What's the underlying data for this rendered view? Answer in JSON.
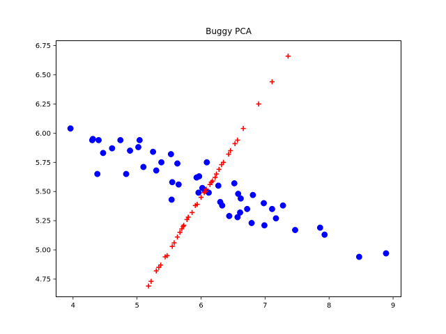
{
  "chart_data": {
    "type": "scatter",
    "title": "Buggy PCA",
    "xlabel": "",
    "ylabel": "",
    "xlim": [
      3.73,
      9.13
    ],
    "ylim": [
      4.595,
      6.795
    ],
    "x_ticks": [
      4,
      5,
      6,
      7,
      8,
      9
    ],
    "y_ticks": [
      4.75,
      5.0,
      5.25,
      5.5,
      5.75,
      6.0,
      6.25,
      6.5,
      6.75
    ],
    "x_tick_labels": [
      "4",
      "5",
      "6",
      "7",
      "8",
      "9"
    ],
    "y_tick_labels": [
      "4.75",
      "5.00",
      "5.25",
      "5.50",
      "5.75",
      "6.00",
      "6.25",
      "6.50",
      "6.75"
    ],
    "grid": false,
    "legend": "none",
    "colors": {
      "data": "#0000ff",
      "projected": "#ff0000"
    },
    "series": [
      {
        "marker": "circle",
        "color": "#0000ff",
        "points": [
          [
            3.96,
            6.04
          ],
          [
            4.3,
            5.94
          ],
          [
            4.31,
            5.95
          ],
          [
            4.4,
            5.94
          ],
          [
            4.38,
            5.65
          ],
          [
            4.47,
            5.83
          ],
          [
            4.61,
            5.87
          ],
          [
            4.74,
            5.94
          ],
          [
            4.83,
            5.65
          ],
          [
            4.89,
            5.85
          ],
          [
            5.02,
            5.88
          ],
          [
            5.04,
            5.94
          ],
          [
            5.1,
            5.71
          ],
          [
            5.25,
            5.84
          ],
          [
            5.3,
            5.68
          ],
          [
            5.38,
            5.75
          ],
          [
            5.53,
            5.82
          ],
          [
            5.55,
            5.58
          ],
          [
            5.54,
            5.43
          ],
          [
            5.63,
            5.74
          ],
          [
            5.65,
            5.56
          ],
          [
            5.93,
            5.62
          ],
          [
            5.97,
            5.63
          ],
          [
            5.96,
            5.49
          ],
          [
            6.02,
            5.53
          ],
          [
            6.06,
            5.51
          ],
          [
            6.09,
            5.75
          ],
          [
            6.12,
            5.49
          ],
          [
            6.27,
            5.55
          ],
          [
            6.3,
            5.41
          ],
          [
            6.33,
            5.38
          ],
          [
            6.44,
            5.29
          ],
          [
            6.52,
            5.57
          ],
          [
            6.57,
            5.28
          ],
          [
            6.58,
            5.48
          ],
          [
            6.61,
            5.32
          ],
          [
            6.62,
            5.44
          ],
          [
            6.72,
            5.35
          ],
          [
            6.79,
            5.23
          ],
          [
            6.81,
            5.47
          ],
          [
            6.98,
            5.4
          ],
          [
            6.99,
            5.21
          ],
          [
            7.11,
            5.35
          ],
          [
            7.17,
            5.27
          ],
          [
            7.28,
            5.38
          ],
          [
            7.47,
            5.17
          ],
          [
            7.86,
            5.19
          ],
          [
            7.93,
            5.13
          ],
          [
            8.47,
            4.94
          ],
          [
            8.89,
            4.97
          ]
        ]
      },
      {
        "marker": "plus",
        "color": "#ff0000",
        "points": [
          [
            5.18,
            4.69
          ],
          [
            5.22,
            4.73
          ],
          [
            5.3,
            4.82
          ],
          [
            5.34,
            4.85
          ],
          [
            5.37,
            4.87
          ],
          [
            5.44,
            4.94
          ],
          [
            5.47,
            4.95
          ],
          [
            5.55,
            5.03
          ],
          [
            5.58,
            5.06
          ],
          [
            5.63,
            5.11
          ],
          [
            5.67,
            5.15
          ],
          [
            5.7,
            5.18
          ],
          [
            5.72,
            5.2
          ],
          [
            5.73,
            5.21
          ],
          [
            5.78,
            5.26
          ],
          [
            5.8,
            5.28
          ],
          [
            5.86,
            5.32
          ],
          [
            5.91,
            5.38
          ],
          [
            5.94,
            5.39
          ],
          [
            6.0,
            5.45
          ],
          [
            6.05,
            5.49
          ],
          [
            6.07,
            5.5
          ],
          [
            6.08,
            5.52
          ],
          [
            6.14,
            5.56
          ],
          [
            6.16,
            5.58
          ],
          [
            6.18,
            5.59
          ],
          [
            6.22,
            5.62
          ],
          [
            6.24,
            5.65
          ],
          [
            6.28,
            5.69
          ],
          [
            6.32,
            5.73
          ],
          [
            6.35,
            5.75
          ],
          [
            6.43,
            5.82
          ],
          [
            6.46,
            5.85
          ],
          [
            6.53,
            5.91
          ],
          [
            6.57,
            5.94
          ],
          [
            6.66,
            6.04
          ],
          [
            6.9,
            6.25
          ],
          [
            7.11,
            6.44
          ],
          [
            7.36,
            6.66
          ]
        ]
      }
    ]
  }
}
